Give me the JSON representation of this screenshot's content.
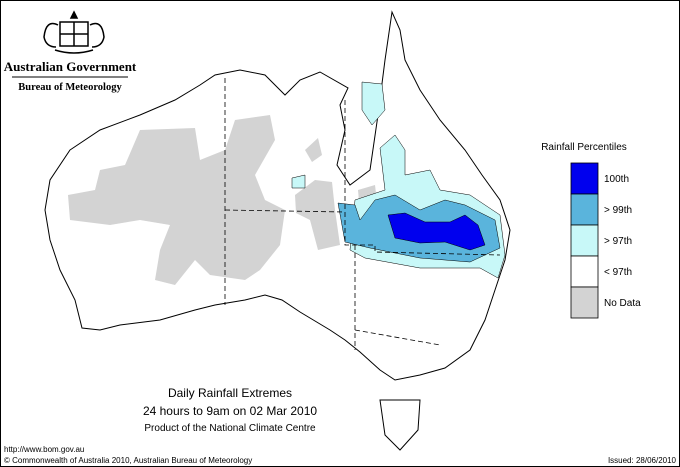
{
  "header": {
    "government": "Australian Government",
    "bureau": "Bureau of Meteorology"
  },
  "legend": {
    "title": "Rainfall Percentiles",
    "items": [
      {
        "label": "100th",
        "color": "#0000ee"
      },
      {
        "label": "> 99th",
        "color": "#5ab4dc"
      },
      {
        "label": "> 97th",
        "color": "#c8f8f8"
      },
      {
        "label": "< 97th",
        "color": "#ffffff"
      },
      {
        "label": "No Data",
        "color": "#d3d3d3"
      }
    ]
  },
  "caption": {
    "title": "Daily Rainfall Extremes",
    "period": "24 hours to 9am on 02 Mar 2010",
    "product": "Product of the National Climate Centre"
  },
  "footer": {
    "url": "http://www.bom.gov.au",
    "copyright": "© Commonwealth of Australia 2010, Australian Bureau of Meteorology",
    "issued": "Issued: 28/06/2010"
  }
}
